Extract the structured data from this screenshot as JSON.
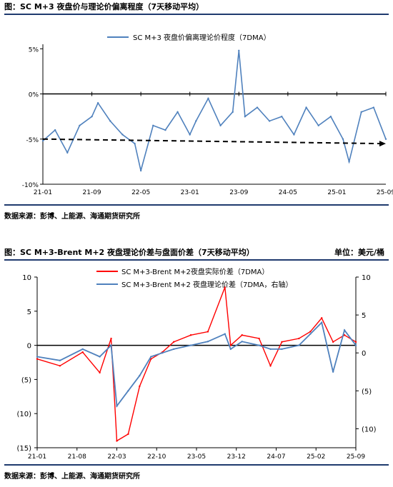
{
  "chart_data": [
    {
      "type": "line",
      "title": "图：SC M+3 夜盘价与理论价偏离程度（7天移动平均）",
      "source": "数据来源：彭博、上能源、海通期货研究所",
      "legend_position": "top",
      "x_tick_labels": [
        "21-01",
        "21-09",
        "22-05",
        "23-01",
        "23-09",
        "24-05",
        "25-01",
        "25-09"
      ],
      "x_range": [
        "2021-01",
        "2025-09"
      ],
      "y_ticks": [
        "5%",
        "0%",
        "-5%",
        "-10%"
      ],
      "ylim": [
        -10,
        5.5
      ],
      "series": [
        {
          "name": "SC M+3 夜盘价偏离理论价程度（7DMA）",
          "color": "#4f81bd",
          "x": [
            "2021-01",
            "2021-03",
            "2021-05",
            "2021-07",
            "2021-09",
            "2021-10",
            "2021-12",
            "2022-02",
            "2022-04",
            "2022-05",
            "2022-07",
            "2022-09",
            "2022-11",
            "2023-01",
            "2023-02",
            "2023-04",
            "2023-06",
            "2023-08",
            "2023-09",
            "2023-10",
            "2023-12",
            "2024-02",
            "2024-04",
            "2024-06",
            "2024-08",
            "2024-10",
            "2024-12",
            "2025-02",
            "2025-03",
            "2025-05",
            "2025-07",
            "2025-09"
          ],
          "values": [
            -5.2,
            -4.0,
            -6.5,
            -3.5,
            -2.5,
            -1.0,
            -3.0,
            -4.5,
            -5.5,
            -8.5,
            -3.5,
            -4.0,
            -2.0,
            -4.5,
            -3.0,
            -0.5,
            -3.5,
            -2.0,
            4.8,
            -2.5,
            -1.5,
            -3.0,
            -2.5,
            -4.5,
            -1.5,
            -3.5,
            -2.5,
            -5.0,
            -7.5,
            -2.0,
            -1.5,
            -5.0
          ]
        },
        {
          "name": "",
          "style": "dashed-arrow",
          "color": "#000000",
          "x": [
            "2021-01",
            "2025-09"
          ],
          "values": [
            -5.0,
            -5.5
          ]
        }
      ]
    },
    {
      "type": "line",
      "title": "图：SC M+3-Brent M+2 夜盘理论价差与盘面价差（7天移动平均）",
      "unit": "单位：美元/桶",
      "source": "数据来源：彭博、上能源、海通期货研究所",
      "legend_position": "top",
      "x_tick_labels": [
        "21-01",
        "21-08",
        "22-03",
        "22-10",
        "23-05",
        "23-12",
        "24-07",
        "25-02",
        "25-09"
      ],
      "x_range": [
        "2021-01",
        "2025-09"
      ],
      "y_left_ticks": [
        "10",
        "5",
        "0",
        "(5)",
        "(10)",
        "(15)"
      ],
      "y_left_lim": [
        -15,
        10
      ],
      "y_right_ticks": [
        "10",
        "5",
        "0",
        "(5)",
        "(10)"
      ],
      "y_right_lim": [
        -12.5,
        10
      ],
      "series": [
        {
          "name": "SC M+3-Brent M+2夜盘实际价差（7DMA）",
          "color": "#ff0000",
          "axis": "left",
          "x": [
            "2021-01",
            "2021-05",
            "2021-09",
            "2021-12",
            "2022-02",
            "2022-03",
            "2022-05",
            "2022-07",
            "2022-09",
            "2022-11",
            "2023-01",
            "2023-04",
            "2023-07",
            "2023-10",
            "2023-11",
            "2024-01",
            "2024-04",
            "2024-06",
            "2024-08",
            "2024-11",
            "2025-01",
            "2025-03",
            "2025-05",
            "2025-07",
            "2025-09"
          ],
          "values": [
            -2.0,
            -3.0,
            -1.0,
            -4.0,
            1.0,
            -14.0,
            -13.0,
            -6.0,
            -2.0,
            -1.0,
            0.5,
            1.5,
            2.0,
            8.5,
            0.0,
            1.5,
            1.0,
            -3.0,
            0.5,
            1.0,
            2.0,
            4.0,
            0.5,
            1.5,
            0.5
          ]
        },
        {
          "name": "SC M+3-Brent M+2 夜盘理论价差（7DMA，右轴）",
          "color": "#4f81bd",
          "axis": "right",
          "x": [
            "2021-01",
            "2021-05",
            "2021-09",
            "2021-12",
            "2022-02",
            "2022-03",
            "2022-05",
            "2022-07",
            "2022-09",
            "2022-11",
            "2023-01",
            "2023-04",
            "2023-07",
            "2023-10",
            "2023-11",
            "2024-01",
            "2024-04",
            "2024-06",
            "2024-08",
            "2024-11",
            "2025-01",
            "2025-03",
            "2025-05",
            "2025-07",
            "2025-09"
          ],
          "values": [
            -0.5,
            -1.0,
            0.5,
            -0.5,
            1.0,
            -7.0,
            -5.0,
            -3.0,
            -0.5,
            0.0,
            0.5,
            1.0,
            1.5,
            2.5,
            0.5,
            1.5,
            1.0,
            0.5,
            0.5,
            1.0,
            2.5,
            4.0,
            -2.5,
            3.0,
            1.0
          ]
        }
      ]
    }
  ]
}
